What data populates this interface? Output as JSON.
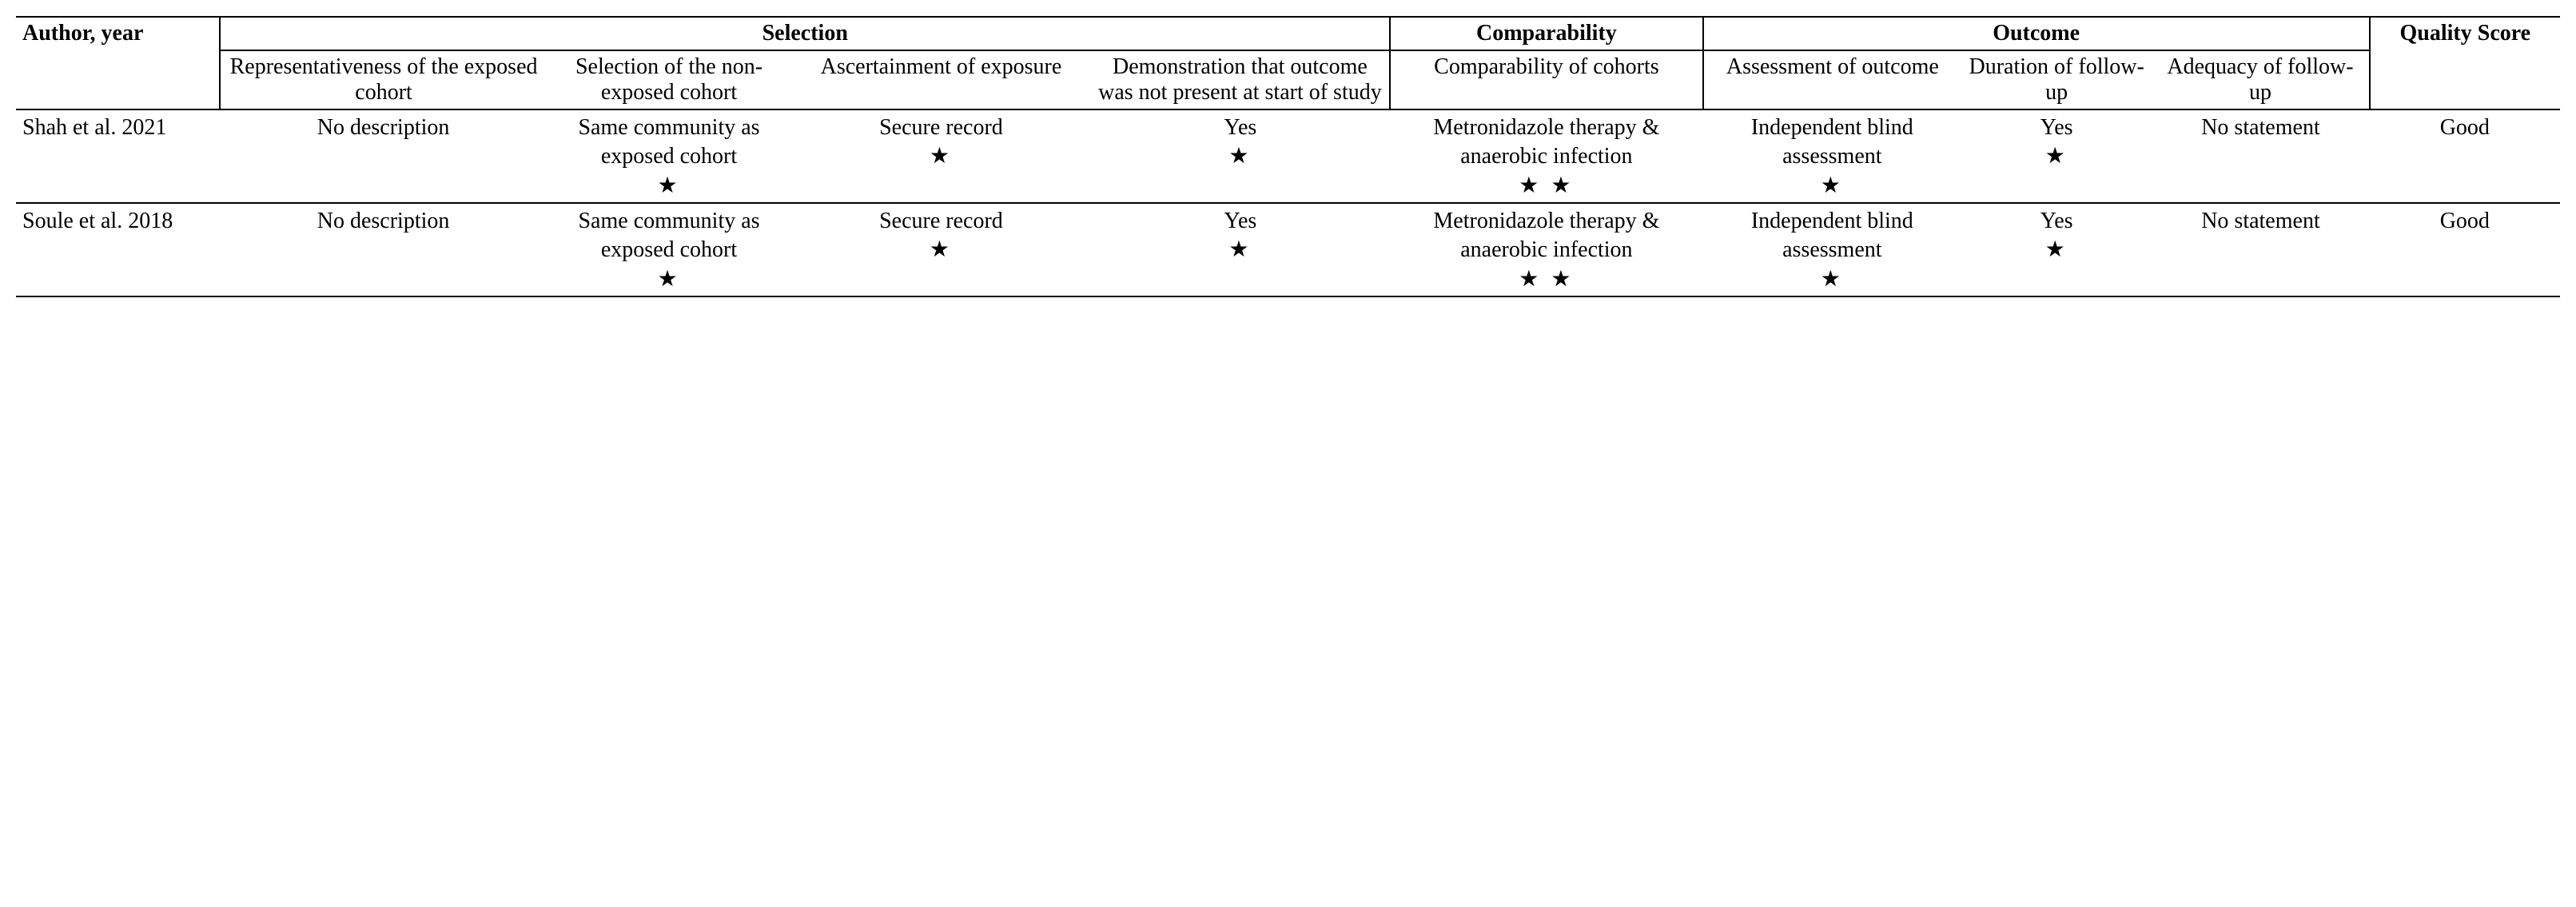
{
  "table": {
    "type": "table",
    "background_color": "#ffffff",
    "text_color": "#000000",
    "border_color": "#000000",
    "font_family": "Times New Roman",
    "base_fontsize": 28,
    "star_glyph": "★",
    "column_widths_pct": [
      7.5,
      12,
      9,
      11,
      11,
      11.5,
      9.5,
      7,
      8,
      7
    ],
    "headers": {
      "author": "Author, year",
      "selection": "Selection",
      "comparability": "Comparability",
      "outcome": "Outcome",
      "quality_score": "Quality Score",
      "sel1": "Representativeness of the exposed cohort",
      "sel2": "Selection of the non-exposed cohort",
      "sel3": "Ascertainment of exposure",
      "sel4": "Demonstration that outcome was not present at start of study",
      "comp1": "Comparability of cohorts",
      "out1": "Assessment of outcome",
      "out2": "Duration of follow-up",
      "out3": "Adequacy of follow-up"
    },
    "rows": [
      {
        "author": "Shah et al. 2021",
        "sel1": {
          "text": "No description",
          "stars": 0
        },
        "sel2": {
          "text": "Same community as exposed cohort",
          "stars": 1
        },
        "sel3": {
          "text": "Secure record",
          "stars": 1
        },
        "sel4": {
          "text": "Yes",
          "stars": 1
        },
        "comp1": {
          "text": "Metronidazole therapy & anaerobic infection",
          "stars": 2
        },
        "out1": {
          "text": "Independent blind assessment",
          "stars": 1
        },
        "out2": {
          "text": "Yes",
          "stars": 1
        },
        "out3": {
          "text": "No statement",
          "stars": 0
        },
        "score": "Good"
      },
      {
        "author": "Soule et al. 2018",
        "sel1": {
          "text": "No description",
          "stars": 0
        },
        "sel2": {
          "text": "Same community as exposed cohort",
          "stars": 1
        },
        "sel3": {
          "text": "Secure record",
          "stars": 1
        },
        "sel4": {
          "text": "Yes",
          "stars": 1
        },
        "comp1": {
          "text": "Metronidazole therapy & anaerobic infection",
          "stars": 2
        },
        "out1": {
          "text": "Independent blind assessment",
          "stars": 1
        },
        "out2": {
          "text": "Yes",
          "stars": 1
        },
        "out3": {
          "text": "No statement",
          "stars": 0
        },
        "score": "Good"
      }
    ]
  }
}
